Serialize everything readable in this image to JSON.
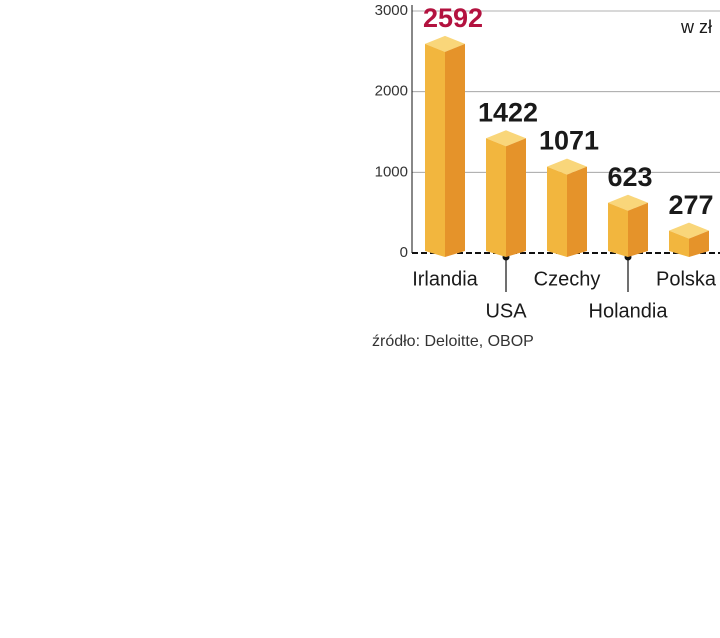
{
  "chart_data": {
    "type": "bar",
    "unit": "w zł",
    "source": "źródło: Deloitte, OBOP",
    "categories": [
      "Irlandia",
      "USA",
      "Czechy",
      "Holandia",
      "Polska"
    ],
    "values": [
      2592,
      1422,
      1071,
      623,
      277
    ],
    "value_label_colors": [
      "#b3123f",
      "#1a1a1a",
      "#1a1a1a",
      "#1a1a1a",
      "#1a1a1a"
    ],
    "color": "#f2b63e",
    "ylim": [
      0,
      3000
    ],
    "yticks": [
      0,
      1000,
      2000,
      3000
    ],
    "grid": true
  }
}
